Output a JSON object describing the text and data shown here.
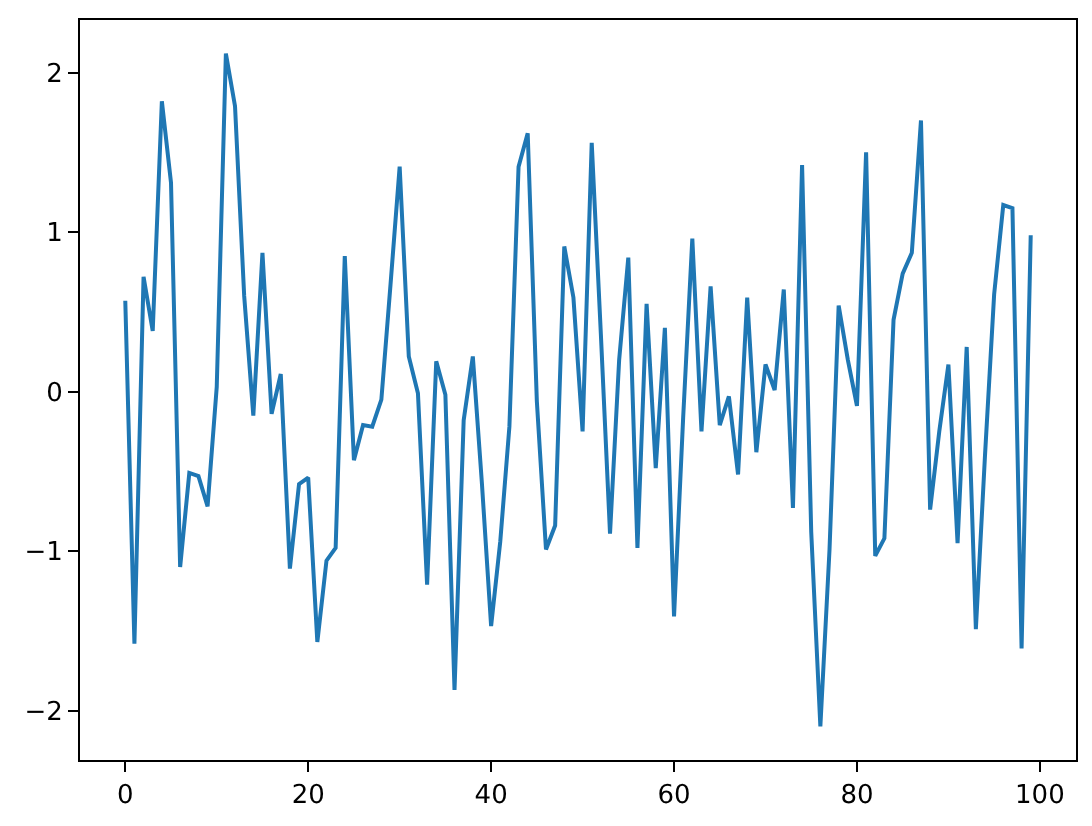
{
  "chart_data": {
    "type": "line",
    "color": "#1f77b4",
    "x": [
      0,
      1,
      2,
      3,
      4,
      5,
      6,
      7,
      8,
      9,
      10,
      11,
      12,
      13,
      14,
      15,
      16,
      17,
      18,
      19,
      20,
      21,
      22,
      23,
      24,
      25,
      26,
      27,
      28,
      29,
      30,
      31,
      32,
      33,
      34,
      35,
      36,
      37,
      38,
      39,
      40,
      41,
      42,
      43,
      44,
      45,
      46,
      47,
      48,
      49,
      50,
      51,
      52,
      53,
      54,
      55,
      56,
      57,
      58,
      59,
      60,
      61,
      62,
      63,
      64,
      65,
      66,
      67,
      68,
      69,
      70,
      71,
      72,
      73,
      74,
      75,
      76,
      77,
      78,
      79,
      80,
      81,
      82,
      83,
      84,
      85,
      86,
      87,
      88,
      89,
      90,
      91,
      92,
      93,
      94,
      95,
      96,
      97,
      98,
      99
    ],
    "values": [
      0.57,
      -1.58,
      0.72,
      0.38,
      1.82,
      1.31,
      -1.1,
      -0.51,
      -0.53,
      -0.72,
      0.03,
      2.12,
      1.79,
      0.6,
      -0.15,
      0.87,
      -0.14,
      0.11,
      -1.11,
      -0.58,
      -0.54,
      -1.57,
      -1.06,
      -0.98,
      0.85,
      -0.43,
      -0.21,
      -0.22,
      -0.05,
      0.67,
      1.41,
      0.22,
      -0.01,
      -1.21,
      0.19,
      -0.02,
      -1.87,
      -0.18,
      0.22,
      -0.58,
      -1.47,
      -0.94,
      -0.22,
      1.41,
      1.62,
      -0.06,
      -0.99,
      -0.84,
      0.91,
      0.59,
      -0.25,
      1.56,
      0.36,
      -0.89,
      0.2,
      0.84,
      -0.98,
      0.55,
      -0.48,
      0.4,
      -1.41,
      -0.16,
      0.96,
      -0.25,
      0.66,
      -0.21,
      -0.03,
      -0.52,
      0.59,
      -0.38,
      0.17,
      0.01,
      0.64,
      -0.73,
      1.42,
      -0.88,
      -2.1,
      -0.99,
      0.54,
      0.2,
      -0.09,
      1.5,
      -1.03,
      -0.92,
      0.45,
      0.74,
      0.87,
      1.7,
      -0.74,
      -0.25,
      0.17,
      -0.95,
      0.28,
      -1.49,
      -0.4,
      0.61,
      1.17,
      1.15,
      -1.61,
      0.98
    ],
    "xlim": [
      -4.95,
      103.95
    ],
    "ylim": [
      -2.31,
      2.33
    ],
    "xticks": [
      0,
      20,
      40,
      60,
      80,
      100
    ],
    "yticks": [
      -2,
      -1,
      0,
      1,
      2
    ]
  }
}
